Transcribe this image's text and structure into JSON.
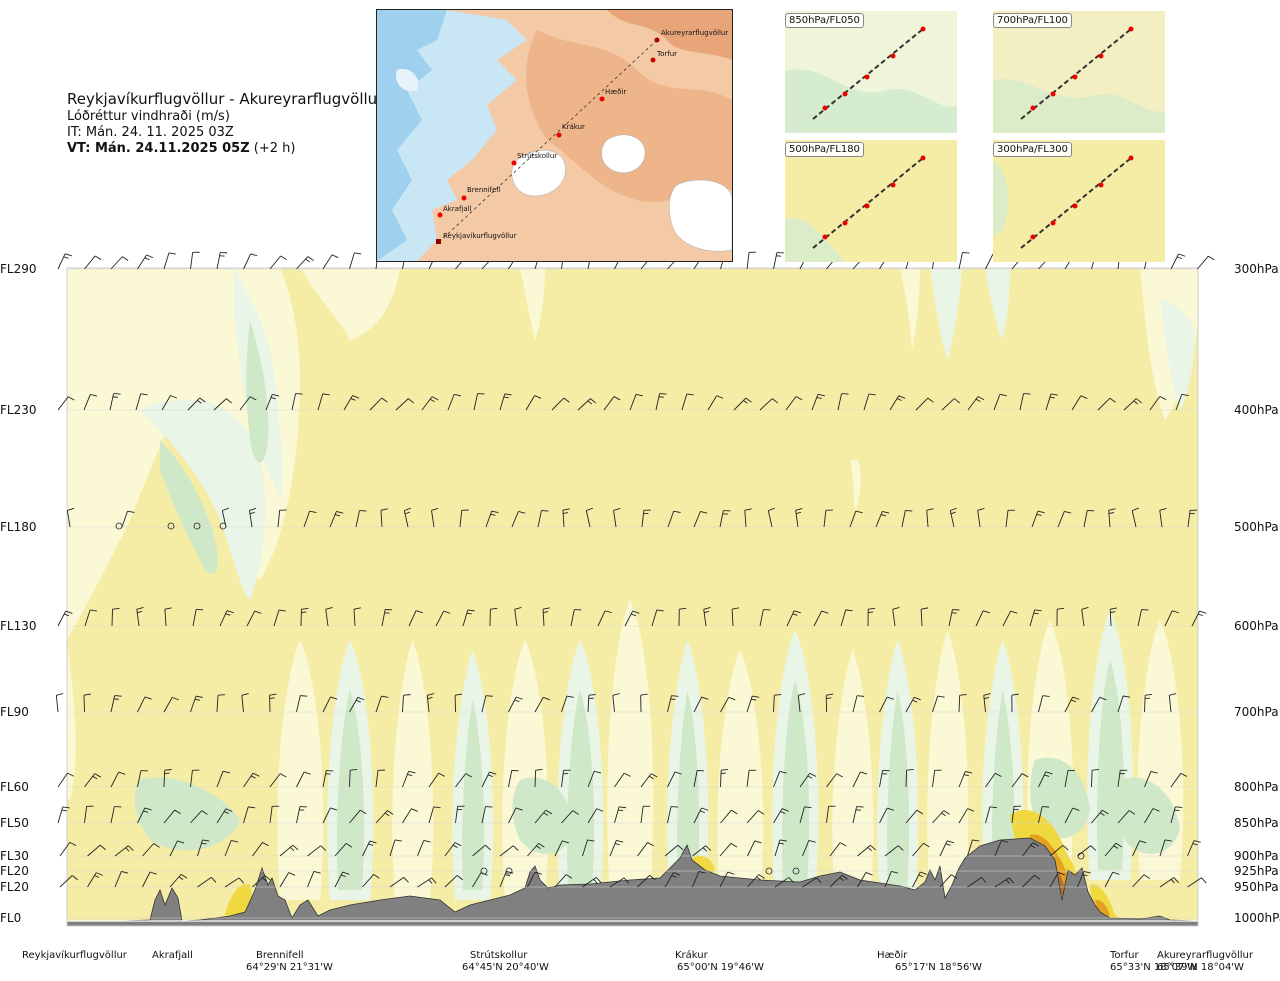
{
  "title": {
    "route": "Reykjavíkurflugvöllur - Akureyrarflugvöllur",
    "parameter": "Lóðréttur vindhraði (m/s)",
    "issue_time": "IT: Mán. 24. 11. 2025 03Z",
    "valid_time": "VT: Mán. 24.11.2025 05Z",
    "lead": "(+2 h)"
  },
  "route_map": {
    "places": [
      "Akureyrarflugvöllur",
      "Torfur",
      "Hæðir",
      "Krákur",
      "Strútskollur",
      "Brennifell",
      "Akrafjall",
      "Reykjavíkurflugvöllur"
    ]
  },
  "mini_maps": [
    {
      "label": "850hPa/FL050"
    },
    {
      "label": "700hPa/FL100"
    },
    {
      "label": "500hPa/FL180"
    },
    {
      "label": "300hPa/FL300"
    }
  ],
  "colors": {
    "background_fill": "#f5eca6",
    "weak_up": "#fbf8d6",
    "light_down": "#e9f5e6",
    "down": "#cfe8c8",
    "strong_down": "#b9dcb1",
    "up_yellow": "#f0d840",
    "up_orange": "#e4a020",
    "up_brown": "#b8702a",
    "terrain": "#808080"
  },
  "chart_data": {
    "type": "heatmap",
    "levels": [
      {
        "fl": "FL290",
        "hpa": "300hPa"
      },
      {
        "fl": "FL230",
        "hpa": "400hPa"
      },
      {
        "fl": "FL180",
        "hpa": "500hPa"
      },
      {
        "fl": "FL130",
        "hpa": "600hPa"
      },
      {
        "fl": "FL90",
        "hpa": "700hPa"
      },
      {
        "fl": "FL60",
        "hpa": "800hPa"
      },
      {
        "fl": "FL50",
        "hpa": "850hPa"
      },
      {
        "fl": "FL30",
        "hpa": "900hPa"
      },
      {
        "fl": "FL20",
        "hpa": "925hPa"
      },
      {
        "fl": "FL20",
        "hpa": "950hPa"
      },
      {
        "fl": "FL0",
        "hpa": "1000hPa"
      }
    ],
    "waypoints": [
      {
        "name": "Reykjavíkurflugvöllur",
        "coord": ""
      },
      {
        "name": "Akrafjall",
        "coord": ""
      },
      {
        "name": "Brennifell",
        "coord": "64°29'N 21°31'W"
      },
      {
        "name": "Strútskollur",
        "coord": "64°45'N 20°40'W"
      },
      {
        "name": "Krákur",
        "coord": "65°00'N 19°46'W"
      },
      {
        "name": "Hæðir",
        "coord": "65°17'N 18°56'W"
      },
      {
        "name": "Torfur",
        "coord": "65°33'N 18°07'W"
      },
      {
        "name": "Akureyrarflugvöllur",
        "coord": "65°39'N 18°04'W"
      }
    ]
  }
}
